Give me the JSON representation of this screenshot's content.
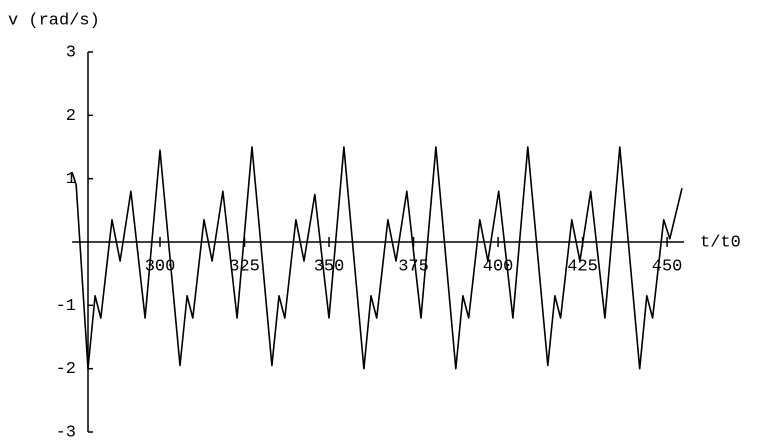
{
  "chart_data": {
    "type": "line",
    "y_label": "v (rad/s)",
    "x_label": "t/t0",
    "x": [
      274.0,
      275.2,
      278.7,
      280.8,
      282.5,
      285.8,
      288.2,
      291.4,
      295.6,
      300.0,
      305.9,
      308.0,
      309.7,
      313.0,
      315.4,
      318.6,
      322.8,
      327.2,
      333.1,
      335.2,
      336.9,
      340.2,
      342.6,
      345.8,
      350.0,
      354.4,
      360.3,
      362.4,
      364.1,
      367.4,
      369.8,
      373.0,
      377.2,
      381.6,
      387.5,
      389.6,
      391.3,
      394.6,
      397.0,
      400.2,
      404.4,
      408.8,
      414.7,
      416.8,
      418.5,
      421.8,
      424.2,
      427.4,
      431.6,
      436.0,
      441.9,
      444.0,
      445.7,
      449.0,
      450.8,
      454.4
    ],
    "series": [
      {
        "color": "#000000",
        "values": [
          1.1,
          0.9,
          -2.0,
          -0.85,
          -1.2,
          0.35,
          -0.3,
          0.8,
          -1.2,
          1.45,
          -1.95,
          -0.85,
          -1.2,
          0.35,
          -0.3,
          0.8,
          -1.2,
          1.5,
          -1.95,
          -0.85,
          -1.2,
          0.35,
          -0.3,
          0.75,
          -1.2,
          1.5,
          -2.0,
          -0.85,
          -1.2,
          0.35,
          -0.3,
          0.8,
          -1.2,
          1.5,
          -2.0,
          -0.85,
          -1.2,
          0.35,
          -0.3,
          0.8,
          -1.2,
          1.5,
          -1.95,
          -0.85,
          -1.2,
          0.35,
          -0.3,
          0.8,
          -1.2,
          1.5,
          -2.0,
          -0.85,
          -1.2,
          0.35,
          0.05,
          0.85
        ]
      }
    ],
    "xlim": [
      278.7,
      455
    ],
    "ylim": [
      -3,
      3
    ],
    "xticks": [
      300,
      325,
      350,
      375,
      400,
      425,
      450
    ],
    "yticks": [
      -3,
      -2,
      -1,
      1,
      2,
      3
    ]
  }
}
